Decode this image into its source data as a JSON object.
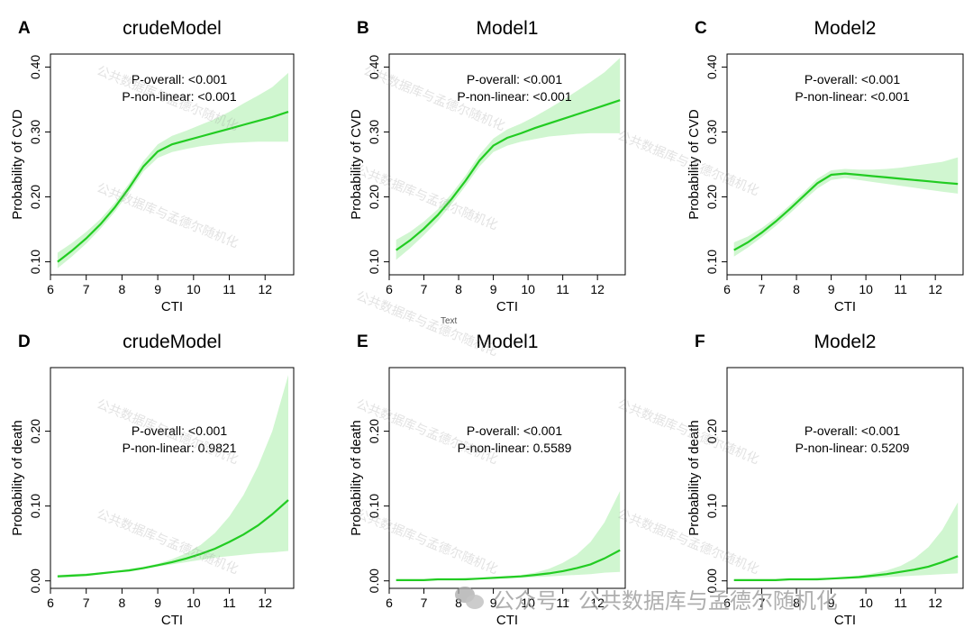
{
  "colors": {
    "line": "#22cc22",
    "band": "#c8f5c8"
  },
  "watermark": {
    "text": "公共数据库与孟德尔随机化"
  },
  "stray_label": "Text",
  "footer": {
    "icon": "wechat-icon",
    "text": "公众号 · 公共数据库与孟德尔随机化"
  },
  "chart_data": [
    {
      "id": "A",
      "type": "line",
      "title": "crudeModel",
      "xlabel": "CTI",
      "ylabel": "Probability of CVD",
      "xlim": [
        6,
        12.8
      ],
      "ylim": [
        0.08,
        0.42
      ],
      "xticks": [
        "6",
        "7",
        "8",
        "9",
        "10",
        "11",
        "12"
      ],
      "yticks": [
        "0.10",
        "0.20",
        "0.30",
        "0.40"
      ],
      "annotations": [
        "P-overall: <0.001",
        "P-non-linear: <0.001"
      ],
      "x": [
        6.2,
        6.6,
        7,
        7.4,
        7.8,
        8.2,
        8.6,
        9,
        9.4,
        9.8,
        10.2,
        10.6,
        11,
        11.4,
        11.8,
        12.2,
        12.65
      ],
      "y": [
        0.1,
        0.117,
        0.136,
        0.158,
        0.184,
        0.214,
        0.247,
        0.27,
        0.281,
        0.287,
        0.293,
        0.299,
        0.305,
        0.311,
        0.317,
        0.323,
        0.331
      ],
      "lower": [
        0.09,
        0.108,
        0.128,
        0.151,
        0.177,
        0.207,
        0.239,
        0.26,
        0.269,
        0.274,
        0.278,
        0.281,
        0.283,
        0.284,
        0.285,
        0.285,
        0.285
      ],
      "upper": [
        0.114,
        0.129,
        0.146,
        0.166,
        0.191,
        0.221,
        0.255,
        0.281,
        0.294,
        0.302,
        0.311,
        0.32,
        0.331,
        0.344,
        0.356,
        0.369,
        0.391
      ]
    },
    {
      "id": "B",
      "type": "line",
      "title": "Model1",
      "xlabel": "CTI",
      "ylabel": "Probability of CVD",
      "xlim": [
        6,
        12.8
      ],
      "ylim": [
        0.08,
        0.42
      ],
      "xticks": [
        "6",
        "7",
        "8",
        "9",
        "10",
        "11",
        "12"
      ],
      "yticks": [
        "0.10",
        "0.20",
        "0.30",
        "0.40"
      ],
      "annotations": [
        "P-overall: <0.001",
        "P-non-linear: <0.001"
      ],
      "x": [
        6.2,
        6.6,
        7,
        7.4,
        7.8,
        8.2,
        8.6,
        9,
        9.4,
        9.8,
        10.2,
        10.6,
        11,
        11.4,
        11.8,
        12.2,
        12.65
      ],
      "y": [
        0.118,
        0.133,
        0.151,
        0.172,
        0.197,
        0.225,
        0.256,
        0.279,
        0.291,
        0.298,
        0.306,
        0.313,
        0.32,
        0.327,
        0.334,
        0.341,
        0.349
      ],
      "lower": [
        0.103,
        0.121,
        0.141,
        0.163,
        0.189,
        0.217,
        0.247,
        0.269,
        0.279,
        0.285,
        0.289,
        0.293,
        0.295,
        0.297,
        0.298,
        0.298,
        0.298
      ],
      "upper": [
        0.134,
        0.146,
        0.162,
        0.181,
        0.205,
        0.233,
        0.265,
        0.29,
        0.304,
        0.313,
        0.324,
        0.336,
        0.349,
        0.363,
        0.377,
        0.392,
        0.414
      ]
    },
    {
      "id": "C",
      "type": "line",
      "title": "Model2",
      "xlabel": "CTI",
      "ylabel": "Probability of CVD",
      "xlim": [
        6,
        12.8
      ],
      "ylim": [
        0.08,
        0.42
      ],
      "xticks": [
        "6",
        "7",
        "8",
        "9",
        "10",
        "11",
        "12"
      ],
      "yticks": [
        "0.10",
        "0.20",
        "0.30",
        "0.40"
      ],
      "annotations": [
        "P-overall: <0.001",
        "P-non-linear: <0.001"
      ],
      "x": [
        6.2,
        6.6,
        7,
        7.4,
        7.8,
        8.2,
        8.6,
        9,
        9.4,
        9.8,
        10.2,
        10.6,
        11,
        11.4,
        11.8,
        12.2,
        12.65
      ],
      "y": [
        0.118,
        0.13,
        0.145,
        0.162,
        0.181,
        0.201,
        0.221,
        0.234,
        0.236,
        0.234,
        0.232,
        0.23,
        0.228,
        0.226,
        0.224,
        0.222,
        0.22
      ],
      "lower": [
        0.108,
        0.122,
        0.138,
        0.155,
        0.174,
        0.194,
        0.213,
        0.226,
        0.229,
        0.226,
        0.223,
        0.22,
        0.217,
        0.214,
        0.211,
        0.208,
        0.205
      ],
      "upper": [
        0.13,
        0.139,
        0.152,
        0.168,
        0.187,
        0.207,
        0.228,
        0.241,
        0.243,
        0.242,
        0.242,
        0.243,
        0.245,
        0.248,
        0.251,
        0.254,
        0.261
      ]
    },
    {
      "id": "D",
      "type": "line",
      "title": "crudeModel",
      "xlabel": "CTI",
      "ylabel": "Probability of death",
      "xlim": [
        6,
        12.8
      ],
      "ylim": [
        -0.01,
        0.285
      ],
      "xticks": [
        "6",
        "7",
        "8",
        "9",
        "10",
        "11",
        "12"
      ],
      "yticks": [
        "0.00",
        "0.10",
        "0.20"
      ],
      "annotations": [
        "P-overall: <0.001",
        "P-non-linear: 0.9821"
      ],
      "x": [
        6.2,
        6.6,
        7,
        7.4,
        7.8,
        8.2,
        8.6,
        9,
        9.4,
        9.8,
        10.2,
        10.6,
        11,
        11.4,
        11.8,
        12.2,
        12.65
      ],
      "y": [
        0.006,
        0.007,
        0.008,
        0.01,
        0.012,
        0.014,
        0.017,
        0.021,
        0.025,
        0.03,
        0.036,
        0.043,
        0.052,
        0.062,
        0.074,
        0.089,
        0.108
      ],
      "lower": [
        0.004,
        0.005,
        0.007,
        0.009,
        0.011,
        0.013,
        0.016,
        0.019,
        0.022,
        0.025,
        0.028,
        0.031,
        0.033,
        0.035,
        0.037,
        0.038,
        0.04
      ],
      "upper": [
        0.008,
        0.009,
        0.01,
        0.011,
        0.013,
        0.016,
        0.019,
        0.023,
        0.029,
        0.037,
        0.048,
        0.064,
        0.086,
        0.115,
        0.153,
        0.2,
        0.275
      ]
    },
    {
      "id": "E",
      "type": "line",
      "title": "Model1",
      "xlabel": "CTI",
      "ylabel": "Probability of death",
      "xlim": [
        6,
        12.8
      ],
      "ylim": [
        -0.01,
        0.285
      ],
      "xticks": [
        "6",
        "7",
        "8",
        "9",
        "10",
        "11",
        "12"
      ],
      "yticks": [
        "0.00",
        "0.10",
        "0.20"
      ],
      "annotations": [
        "P-overall: <0.001",
        "P-non-linear: 0.5589"
      ],
      "x": [
        6.2,
        6.6,
        7,
        7.4,
        7.8,
        8.2,
        8.6,
        9,
        9.4,
        9.8,
        10.2,
        10.6,
        11,
        11.4,
        11.8,
        12.2,
        12.65
      ],
      "y": [
        0.001,
        0.001,
        0.001,
        0.002,
        0.002,
        0.002,
        0.003,
        0.004,
        0.005,
        0.006,
        0.008,
        0.01,
        0.013,
        0.017,
        0.022,
        0.03,
        0.041
      ],
      "lower": [
        0.0,
        0.0,
        0.0,
        0.001,
        0.001,
        0.001,
        0.002,
        0.003,
        0.003,
        0.004,
        0.005,
        0.006,
        0.007,
        0.008,
        0.009,
        0.011,
        0.012
      ],
      "upper": [
        0.002,
        0.002,
        0.002,
        0.003,
        0.003,
        0.004,
        0.004,
        0.005,
        0.006,
        0.008,
        0.011,
        0.016,
        0.024,
        0.035,
        0.052,
        0.078,
        0.12
      ]
    },
    {
      "id": "F",
      "type": "line",
      "title": "Model2",
      "xlabel": "CTI",
      "ylabel": "Probability of death",
      "xlim": [
        6,
        12.8
      ],
      "ylim": [
        -0.01,
        0.285
      ],
      "xticks": [
        "6",
        "7",
        "8",
        "9",
        "10",
        "11",
        "12"
      ],
      "yticks": [
        "0.00",
        "0.10",
        "0.20"
      ],
      "annotations": [
        "P-overall: <0.001",
        "P-non-linear: 0.5209"
      ],
      "x": [
        6.2,
        6.6,
        7,
        7.4,
        7.8,
        8.2,
        8.6,
        9,
        9.4,
        9.8,
        10.2,
        10.6,
        11,
        11.4,
        11.8,
        12.2,
        12.65
      ],
      "y": [
        0.001,
        0.001,
        0.001,
        0.001,
        0.002,
        0.002,
        0.002,
        0.003,
        0.004,
        0.005,
        0.007,
        0.009,
        0.012,
        0.015,
        0.019,
        0.025,
        0.033
      ],
      "lower": [
        0.0,
        0.0,
        0.0,
        0.0,
        0.001,
        0.001,
        0.001,
        0.002,
        0.003,
        0.003,
        0.004,
        0.005,
        0.006,
        0.007,
        0.008,
        0.009,
        0.01
      ],
      "upper": [
        0.002,
        0.002,
        0.002,
        0.002,
        0.003,
        0.003,
        0.004,
        0.004,
        0.005,
        0.007,
        0.01,
        0.014,
        0.02,
        0.03,
        0.045,
        0.068,
        0.105
      ]
    }
  ]
}
